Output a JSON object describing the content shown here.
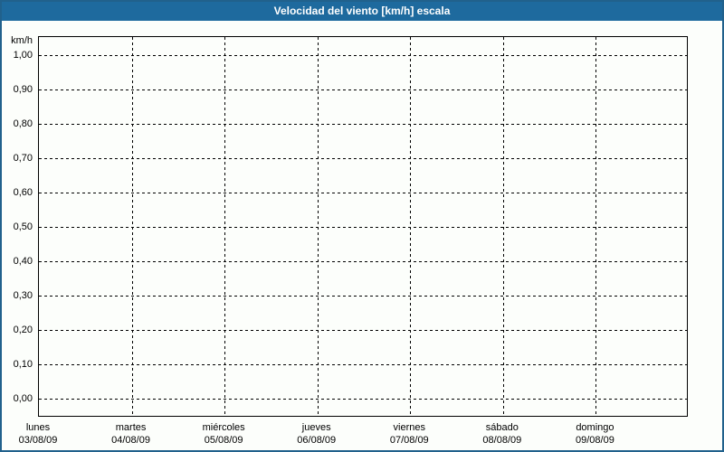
{
  "window": {
    "title": "Velocidad del viento [km/h] escala"
  },
  "colors": {
    "titlebar_background": "#1e6a9e",
    "titlebar_text": "#ffffff",
    "window_border": "#21618c",
    "window_background": "#fcfefb",
    "plot_border": "#000000",
    "gridline": "#000000",
    "label_text": "#000000"
  },
  "chart_data": {
    "type": "line",
    "title": "Velocidad del viento [km/h] escala",
    "ylabel": "km/h",
    "xlabel": "",
    "ylim": [
      0.0,
      1.0
    ],
    "y_tick_step": 0.1,
    "y_tick_labels": [
      "1,00",
      "0,90",
      "0,80",
      "0,70",
      "0,60",
      "0,50",
      "0,40",
      "0,30",
      "0,20",
      "0,10",
      "0,00"
    ],
    "y_tick_values": [
      1.0,
      0.9,
      0.8,
      0.7,
      0.6,
      0.5,
      0.4,
      0.3,
      0.2,
      0.1,
      0.0
    ],
    "x_categories": [
      {
        "day": "lunes",
        "date": "03/08/09"
      },
      {
        "day": "martes",
        "date": "04/08/09"
      },
      {
        "day": "miércoles",
        "date": "05/08/09"
      },
      {
        "day": "jueves",
        "date": "06/08/09"
      },
      {
        "day": "viernes",
        "date": "07/08/09"
      },
      {
        "day": "sábado",
        "date": "08/08/09"
      },
      {
        "day": "domingo",
        "date": "09/08/09"
      }
    ],
    "series": [],
    "grid": "dashed",
    "legend_position": "none"
  }
}
